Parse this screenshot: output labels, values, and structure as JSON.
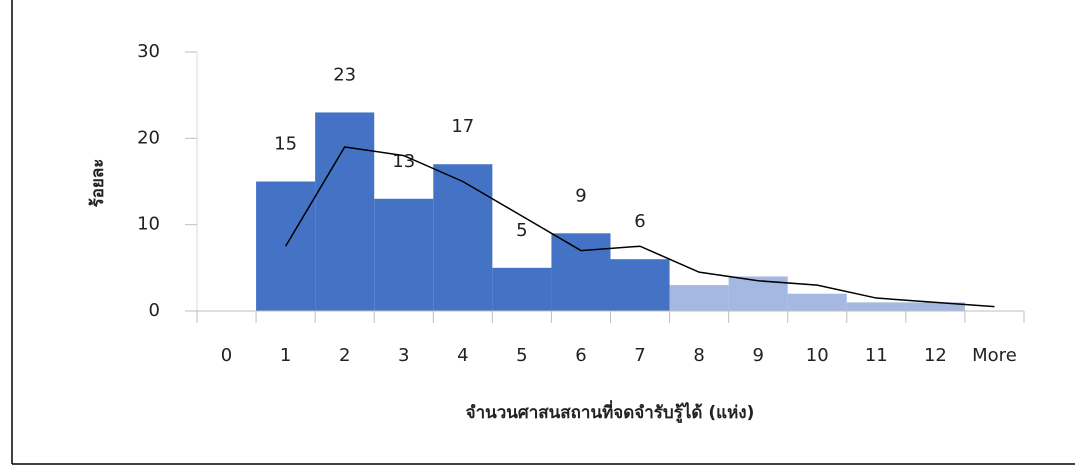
{
  "chart_data": {
    "type": "bar",
    "x_label": "จำนวนศาสนสถานที่จดจำรับรู้ได้ (แห่ง)",
    "y_label": "ร้อยละ",
    "categories": [
      "0",
      "1",
      "2",
      "3",
      "4",
      "5",
      "6",
      "7",
      "8",
      "9",
      "10",
      "11",
      "12",
      "More"
    ],
    "series": [
      {
        "type": "bar",
        "color": "#4472c4",
        "data_labels": true,
        "values": [
          null,
          15,
          23,
          13,
          17,
          5,
          9,
          6,
          null,
          null,
          null,
          null,
          null,
          null
        ]
      },
      {
        "type": "bar",
        "color": "#a4b8e1",
        "data_labels": false,
        "values": [
          null,
          null,
          null,
          null,
          null,
          null,
          null,
          null,
          3,
          4,
          2,
          1,
          1,
          null
        ]
      },
      {
        "type": "line",
        "color": "#000000",
        "data_labels": false,
        "values": [
          null,
          7.5,
          19,
          18,
          15,
          11,
          7,
          7.5,
          4.5,
          3.5,
          3,
          1.5,
          1,
          0.5
        ]
      }
    ],
    "ylim": [
      0,
      30
    ],
    "yticks": [
      0,
      10,
      20,
      30
    ],
    "grid": false
  }
}
